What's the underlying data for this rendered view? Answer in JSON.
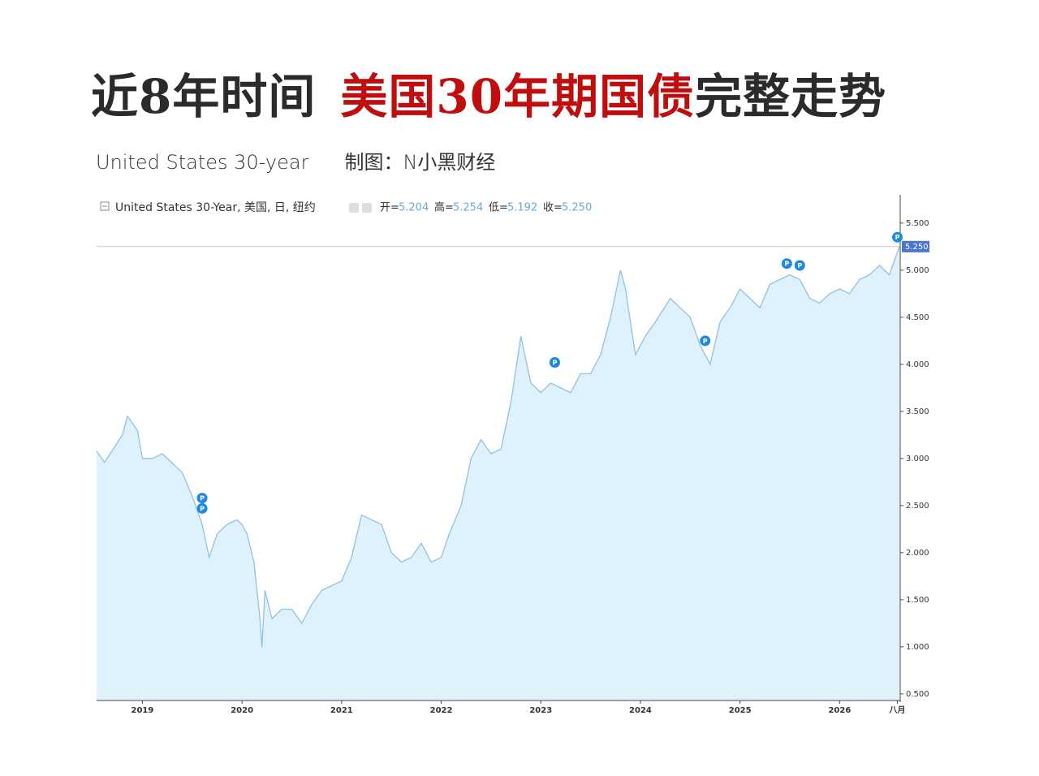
{
  "header": {
    "title": [
      "近8年时间",
      "美国30年期国债",
      "完整走势"
    ],
    "subtitle": "United States 30-year",
    "credit": "制图：N小黑财经"
  },
  "chart_data": {
    "type": "area",
    "series": [
      {
        "name": "United States 30-Year, 美国, 日, 纽约",
        "color": "#8fc1e3",
        "fill": "#dff2fb",
        "values": [
          3.08,
          2.96,
          3.25,
          3.45,
          3.3,
          3.0,
          3.0,
          3.05,
          2.95,
          2.85,
          2.6,
          2.3,
          1.95,
          2.2,
          2.3,
          2.35,
          2.3,
          2.2,
          1.9,
          1.3,
          1.0,
          1.6,
          1.3,
          1.4,
          1.4,
          1.25,
          1.45,
          1.6,
          1.65,
          1.7,
          1.95,
          2.4,
          2.35,
          2.3,
          2.0,
          1.9,
          1.95,
          2.1,
          1.9,
          1.95,
          2.2,
          2.5,
          3.0,
          3.2,
          3.05,
          3.1,
          3.6,
          4.3,
          3.8,
          3.7,
          3.8,
          3.75,
          3.7,
          3.9,
          3.9,
          4.1,
          4.5,
          5.0,
          4.8,
          4.1,
          4.3,
          4.45,
          4.7,
          4.6,
          4.5,
          4.2,
          4.0,
          4.45,
          4.6,
          4.8,
          4.7,
          4.6,
          4.85,
          4.9,
          4.95,
          4.9,
          4.7,
          4.65,
          4.75,
          4.8,
          4.75,
          4.9,
          4.95,
          5.05,
          4.95,
          5.25
        ]
      }
    ],
    "x": [
      2018.54,
      2018.62,
      2018.8,
      2018.85,
      2018.95,
      2019.0,
      2019.1,
      2019.2,
      2019.3,
      2019.4,
      2019.5,
      2019.6,
      2019.67,
      2019.75,
      2019.85,
      2019.95,
      2020.0,
      2020.05,
      2020.12,
      2020.18,
      2020.2,
      2020.23,
      2020.3,
      2020.4,
      2020.5,
      2020.6,
      2020.7,
      2020.8,
      2020.9,
      2021.0,
      2021.1,
      2021.2,
      2021.3,
      2021.4,
      2021.5,
      2021.6,
      2021.7,
      2021.8,
      2021.9,
      2022.0,
      2022.08,
      2022.2,
      2022.3,
      2022.4,
      2022.5,
      2022.6,
      2022.7,
      2022.8,
      2022.9,
      2023.0,
      2023.1,
      2023.2,
      2023.3,
      2023.4,
      2023.5,
      2023.6,
      2023.7,
      2023.8,
      2023.85,
      2023.95,
      2024.05,
      2024.15,
      2024.3,
      2024.4,
      2024.5,
      2024.6,
      2024.7,
      2024.8,
      2024.9,
      2025.0,
      2025.1,
      2025.2,
      2025.3,
      2025.4,
      2025.5,
      2025.6,
      2025.7,
      2025.8,
      2025.9,
      2026.0,
      2026.1,
      2026.2,
      2026.3,
      2026.4,
      2026.5,
      2026.6
    ],
    "xlim": [
      2018.54,
      2026.6
    ],
    "xticks": [
      2019,
      2020,
      2021,
      2022,
      2023,
      2024,
      2025,
      2026,
      {
        "value": 2026.58,
        "label": "八月"
      }
    ],
    "ylim": [
      0.43,
      5.8
    ],
    "yticks": [
      {
        "value": 0.5,
        "label": "0.500"
      },
      {
        "value": 1,
        "label": "1.000"
      },
      {
        "value": 1.5,
        "label": "1.500"
      },
      {
        "value": 2,
        "label": "2.000"
      },
      {
        "value": 2.5,
        "label": "2.500"
      },
      {
        "value": 3,
        "label": "3.000"
      },
      {
        "value": 3.5,
        "label": "3.500"
      },
      {
        "value": 4,
        "label": "4.000"
      },
      {
        "value": 4.5,
        "label": "4.500"
      },
      {
        "value": 5,
        "label": "5.000"
      },
      {
        "value": 5.5,
        "label": "5.500"
      }
    ],
    "ohlc": {
      "names": [
        "开=",
        "高=",
        "低=",
        "收="
      ],
      "values": [
        5.204,
        5.254,
        5.192,
        5.25
      ],
      "value_labels": [
        "5.204",
        "5.254",
        "5.192",
        "5.250"
      ]
    },
    "events": {
      "label": "P",
      "color": "#1e88e5",
      "x": [
        2019.6,
        2019.6,
        2023.14,
        2024.65,
        2025.47,
        2025.6,
        2026.58
      ],
      "y": [
        2.58,
        2.47,
        4.02,
        4.25,
        5.07,
        5.05,
        5.35
      ]
    }
  }
}
